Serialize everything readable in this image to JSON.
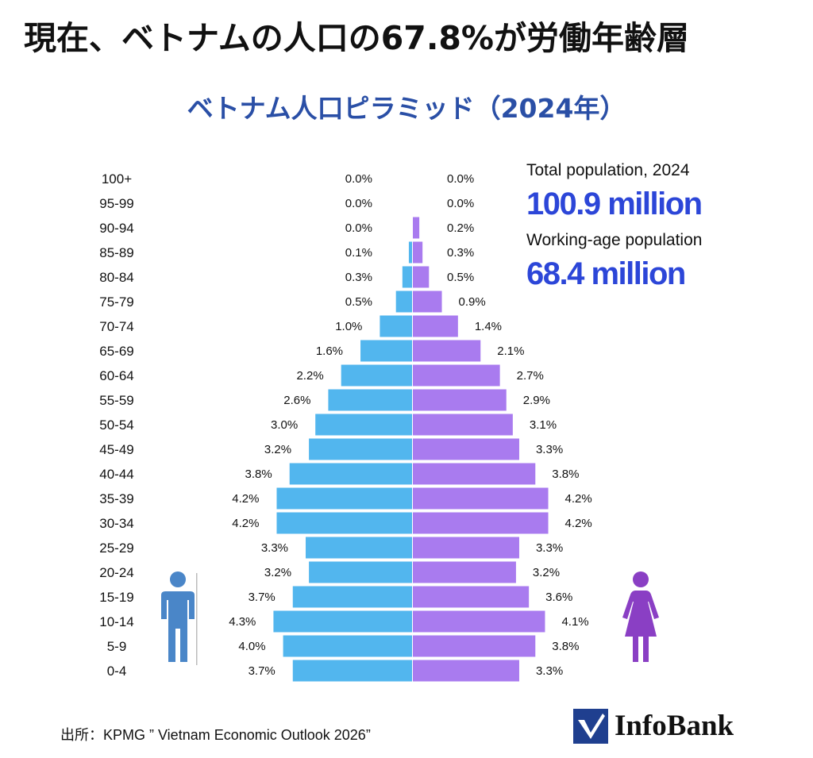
{
  "headline": "現在、ベトナムの人口の67.8%が労働年齢層",
  "stats": {
    "total_label": "Total population, 2024",
    "total_value": "100.9 million",
    "working_label": "Working-age population",
    "working_value": "68.4 million"
  },
  "source": "出所：KPMG ” Vietnam Economic Outlook 2026”",
  "logo": {
    "text": "InfoBank",
    "icon": "checkmark-logo-icon"
  },
  "icons": {
    "male": "male-person-icon",
    "female": "female-person-icon"
  },
  "colors": {
    "male": "#52b6ee",
    "female": "#a97bef",
    "title": "#2a4fa6",
    "highlight": "#2c46d8",
    "logo": "#1f3f8f"
  },
  "chart_data": {
    "type": "bar",
    "orientation": "horizontal",
    "title": "ベトナム人口ピラミッド（2024年）",
    "categories": [
      "100+",
      "95-99",
      "90-94",
      "85-89",
      "80-84",
      "75-79",
      "70-74",
      "65-69",
      "60-64",
      "55-59",
      "50-54",
      "45-49",
      "40-44",
      "35-39",
      "30-34",
      "25-29",
      "20-24",
      "15-19",
      "10-14",
      "5-9",
      "0-4"
    ],
    "series": [
      {
        "values": [
          0.0,
          0.0,
          0.0,
          0.1,
          0.3,
          0.5,
          1.0,
          1.6,
          2.2,
          2.6,
          3.0,
          3.2,
          3.8,
          4.2,
          4.2,
          3.3,
          3.2,
          3.7,
          4.3,
          4.0,
          3.7
        ],
        "labels": [
          "0.0%",
          "0.0%",
          "0.0%",
          "0.1%",
          "0.3%",
          "0.5%",
          "1.0%",
          "1.6%",
          "2.2%",
          "2.6%",
          "3.0%",
          "3.2%",
          "3.8%",
          "4.2%",
          "4.2%",
          "3.3%",
          "3.2%",
          "3.7%",
          "4.3%",
          "4.0%",
          "3.7%"
        ]
      },
      {
        "values": [
          0.0,
          0.0,
          0.2,
          0.3,
          0.5,
          0.9,
          1.4,
          2.1,
          2.7,
          2.9,
          3.1,
          3.3,
          3.8,
          4.2,
          4.2,
          3.3,
          3.2,
          3.6,
          4.1,
          3.8,
          3.3
        ],
        "labels": [
          "0.0%",
          "0.0%",
          "0.2%",
          "0.3%",
          "0.5%",
          "0.9%",
          "1.4%",
          "2.1%",
          "2.7%",
          "2.9%",
          "3.1%",
          "3.3%",
          "3.8%",
          "4.2%",
          "4.2%",
          "3.3%",
          "3.2%",
          "3.6%",
          "4.1%",
          "3.8%",
          "3.3%"
        ]
      }
    ],
    "xlim": [
      0,
      4.3
    ],
    "grid": false,
    "legend": "none"
  }
}
